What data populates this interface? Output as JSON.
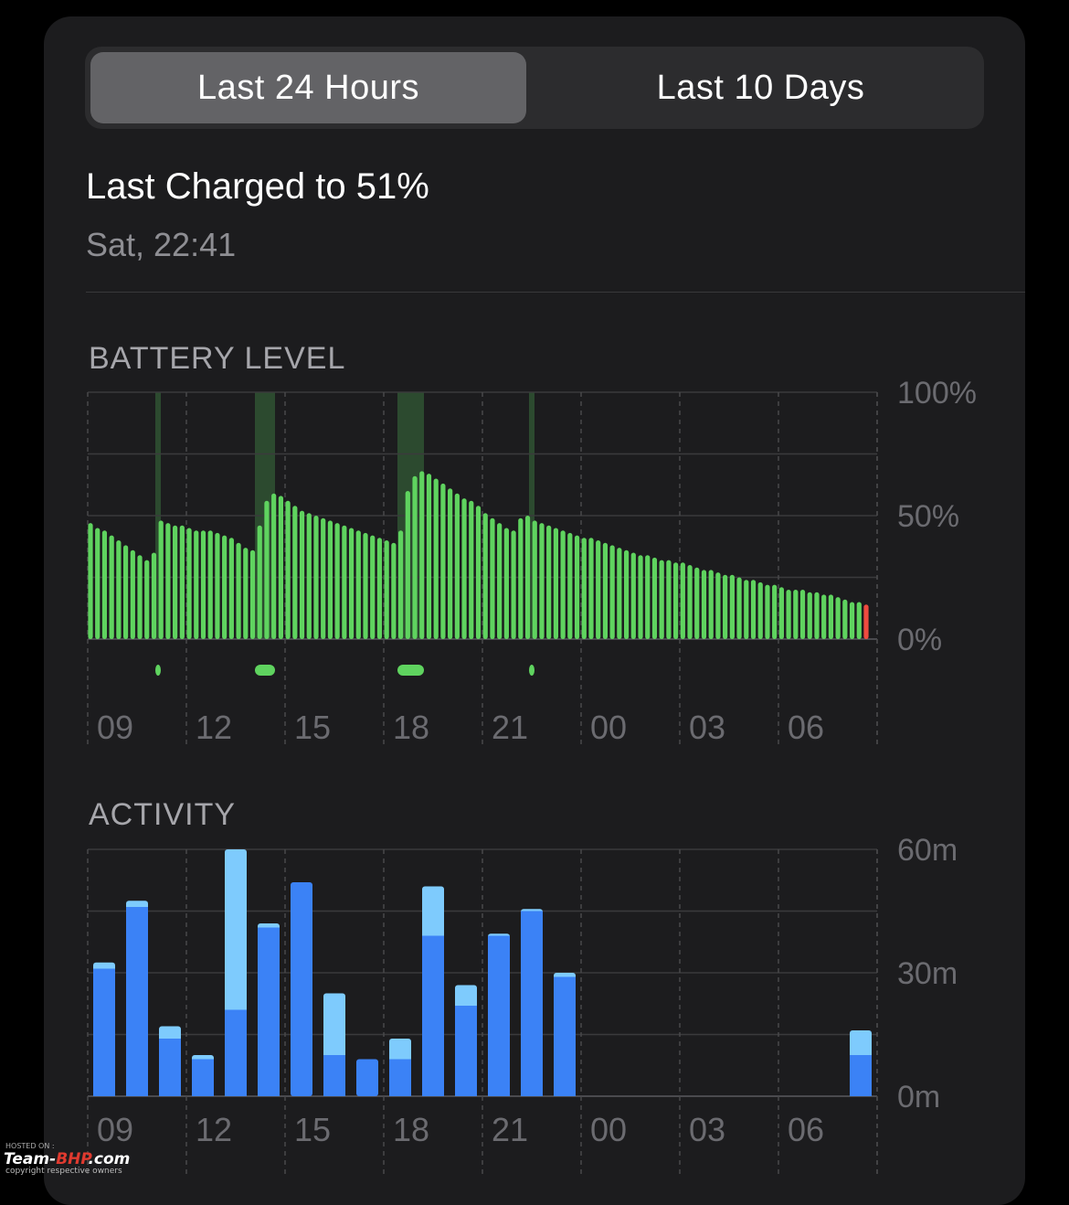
{
  "tabs": [
    {
      "label": "Last 24 Hours",
      "active": true
    },
    {
      "label": "Last 10 Days",
      "active": false
    }
  ],
  "last_charged": {
    "title": "Last Charged to 51%",
    "time": "Sat, 22:41"
  },
  "colors": {
    "background": "#000000",
    "card": "#1c1c1e",
    "battery_green": "#5fd35f",
    "battery_red": "#ef4b3f",
    "charging_band": "#2c4a2f",
    "screen_on": "#3b82f6",
    "screen_off": "#7ecbfd"
  },
  "chart_data": [
    {
      "type": "bar",
      "title": "BATTERY LEVEL",
      "yticks": [
        "100%",
        "50%",
        "0%"
      ],
      "ylim": [
        0,
        100
      ],
      "xticks": [
        "09",
        "12",
        "15",
        "18",
        "21",
        "00",
        "03",
        "06"
      ],
      "values": [
        47,
        45,
        44,
        42,
        40,
        38,
        36,
        34,
        32,
        35,
        48,
        47,
        46,
        46,
        45,
        44,
        44,
        44,
        43,
        42,
        41,
        39,
        37,
        36,
        46,
        56,
        59,
        58,
        56,
        54,
        52,
        51,
        50,
        49,
        48,
        47,
        46,
        45,
        44,
        43,
        42,
        41,
        40,
        39,
        44,
        60,
        66,
        68,
        67,
        65,
        63,
        61,
        59,
        57,
        56,
        54,
        51,
        49,
        47,
        45,
        44,
        49,
        50,
        48,
        47,
        46,
        45,
        44,
        43,
        42,
        41,
        41,
        40,
        39,
        38,
        37,
        36,
        35,
        34,
        34,
        33,
        32,
        32,
        31,
        31,
        30,
        29,
        28,
        28,
        27,
        26,
        26,
        25,
        24,
        24,
        23,
        22,
        22,
        21,
        20,
        20,
        20,
        19,
        19,
        18,
        18,
        17,
        16,
        15,
        15,
        14
      ],
      "low_start_index": 110,
      "charging_periods": [
        "10:10",
        "13:40",
        "18:10-18:55",
        "22:35"
      ],
      "grid": true
    },
    {
      "type": "bar",
      "title": "ACTIVITY",
      "yticks": [
        "60m",
        "30m",
        "0m"
      ],
      "ylim": [
        0,
        60
      ],
      "xticks": [
        "09",
        "12",
        "15",
        "18",
        "21",
        "00",
        "03",
        "06"
      ],
      "categories": [
        "08",
        "09",
        "10",
        "11",
        "12",
        "13",
        "14",
        "15",
        "16",
        "17",
        "18",
        "19",
        "20",
        "21",
        "22",
        "23",
        "00",
        "01",
        "02",
        "03",
        "04",
        "05",
        "06",
        "07"
      ],
      "series": [
        {
          "values": [
            31,
            46,
            14,
            9,
            21,
            41,
            52,
            10,
            9,
            9,
            39,
            22,
            39,
            45,
            29,
            0,
            0,
            0,
            0,
            0,
            0,
            0,
            0,
            10
          ]
        },
        {
          "values": [
            1.5,
            1.5,
            3,
            1,
            39,
            1,
            0,
            15,
            0,
            5,
            12,
            5,
            0.5,
            0.5,
            1,
            0,
            0,
            0,
            0,
            0,
            0,
            0,
            0,
            6
          ]
        }
      ],
      "grid": true
    }
  ],
  "watermark": {
    "hosted": "HOSTED ON :",
    "brand_a": "Team-",
    "brand_b": "BHP",
    "brand_c": ".com",
    "copyright": "copyright respective owners"
  }
}
